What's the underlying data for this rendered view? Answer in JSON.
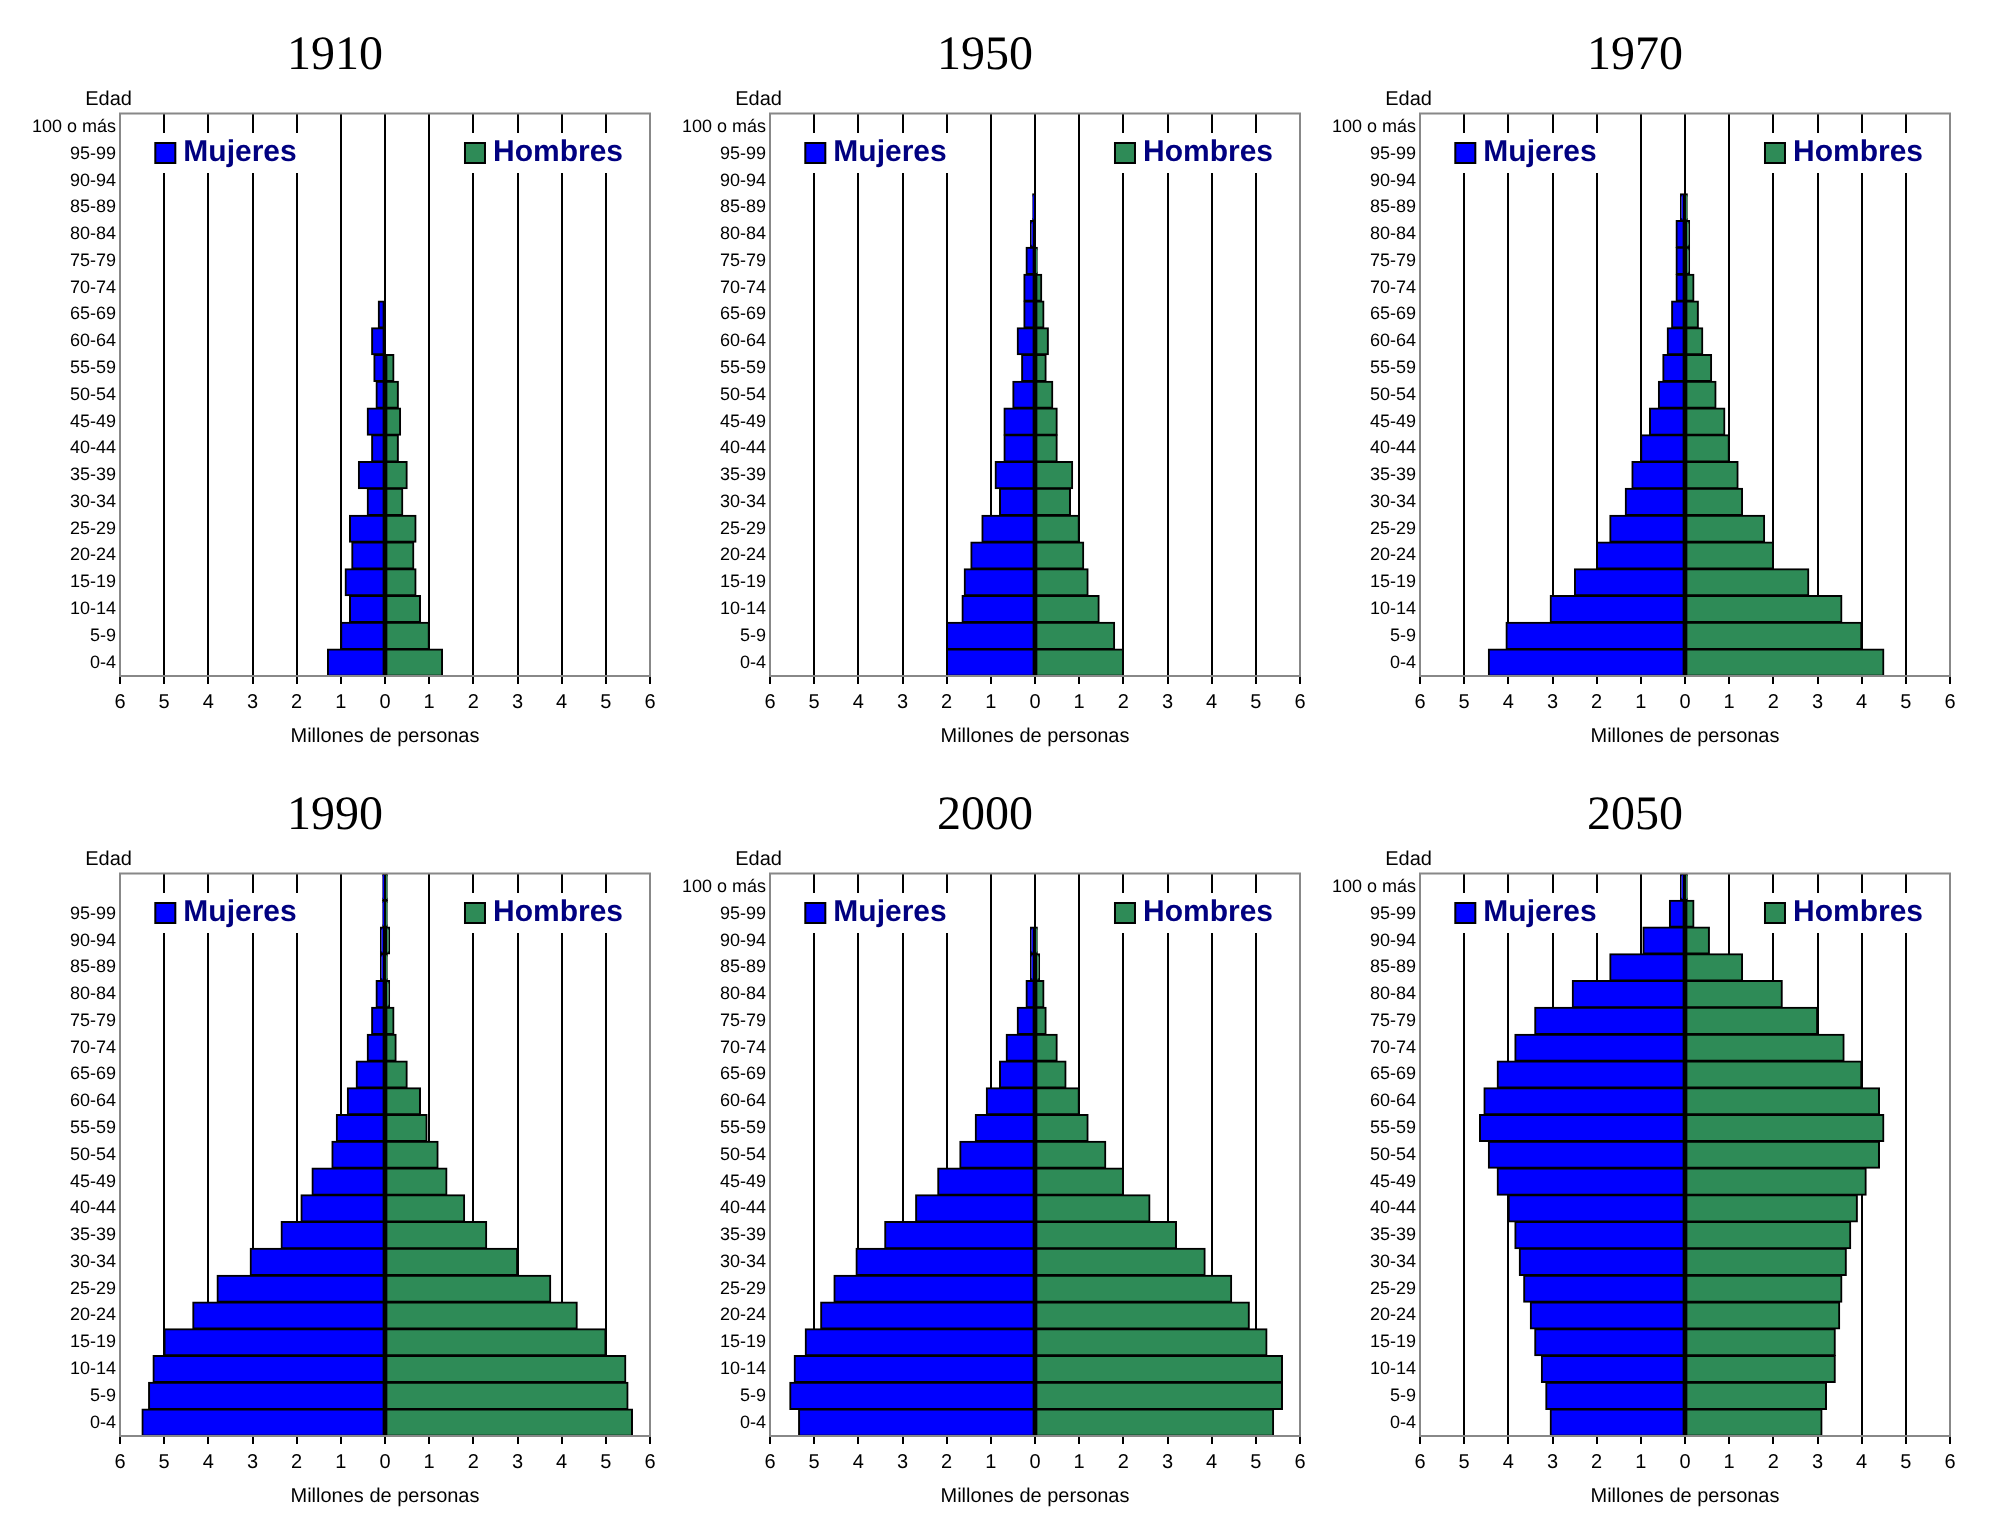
{
  "chart_data": [
    {
      "type": "bar",
      "title": "1910",
      "legend": "top",
      "xlabel": "Millones de personas",
      "ylabel": "Edad",
      "orientation": "horizontal",
      "stacked": true,
      "grid": "x",
      "categories": [
        "100 o más",
        "95-99",
        "90-94",
        "85-89",
        "80-84",
        "75-79",
        "70-74",
        "65-69",
        "60-64",
        "55-59",
        "50-54",
        "45-49",
        "40-44",
        "35-39",
        "30-34",
        "25-29",
        "20-24",
        "15-19",
        "10-14",
        "5-9",
        "0-4"
      ],
      "xlim": [
        -6,
        6
      ],
      "xticks": [
        {
          "value": -6,
          "label": "6"
        },
        {
          "value": -5,
          "label": "5"
        },
        {
          "value": -4,
          "label": "4"
        },
        {
          "value": -3,
          "label": "3"
        },
        {
          "value": -2,
          "label": "2"
        },
        {
          "value": -1,
          "label": "1"
        },
        0,
        1,
        2,
        3,
        4,
        5,
        6
      ],
      "series": [
        {
          "name": "Mujeres",
          "color": "#0000ff",
          "values": [
            0,
            0,
            0,
            0,
            0,
            0,
            0,
            -0.15,
            -0.3,
            -0.25,
            -0.2,
            -0.4,
            -0.3,
            -0.6,
            -0.4,
            -0.8,
            -0.75,
            -0.9,
            -0.8,
            -1.0,
            -1.3
          ]
        },
        {
          "name": "Hombres",
          "color": "#2e8b57",
          "values": [
            0,
            0,
            0,
            0,
            0,
            0,
            0,
            0,
            0,
            0.2,
            0.3,
            0.35,
            0.3,
            0.5,
            0.4,
            0.7,
            0.65,
            0.7,
            0.8,
            1.0,
            1.3
          ]
        }
      ]
    },
    {
      "type": "bar",
      "title": "1950",
      "legend": "top",
      "xlabel": "Millones de personas",
      "ylabel": "Edad",
      "orientation": "horizontal",
      "stacked": true,
      "grid": "x",
      "categories": [
        "100 o más",
        "95-99",
        "90-94",
        "85-89",
        "80-84",
        "75-79",
        "70-74",
        "65-69",
        "60-64",
        "55-59",
        "50-54",
        "45-49",
        "40-44",
        "35-39",
        "30-34",
        "25-29",
        "20-24",
        "15-19",
        "10-14",
        "5-9",
        "0-4"
      ],
      "xlim": [
        -6,
        6
      ],
      "xticks": [
        {
          "value": -6,
          "label": "6"
        },
        {
          "value": -5,
          "label": "5"
        },
        {
          "value": -4,
          "label": "4"
        },
        {
          "value": -3,
          "label": "3"
        },
        {
          "value": -2,
          "label": "2"
        },
        {
          "value": -1,
          "label": "1"
        },
        0,
        1,
        2,
        3,
        4,
        5,
        6
      ],
      "series": [
        {
          "name": "Mujeres",
          "color": "#0000ff",
          "values": [
            0,
            0,
            0,
            -0.05,
            -0.1,
            -0.2,
            -0.25,
            -0.25,
            -0.4,
            -0.3,
            -0.5,
            -0.7,
            -0.7,
            -0.9,
            -0.8,
            -1.2,
            -1.45,
            -1.6,
            -1.65,
            -2.0,
            -2.0
          ]
        },
        {
          "name": "Hombres",
          "color": "#2e8b57",
          "values": [
            0,
            0,
            0,
            0,
            0,
            0.05,
            0.15,
            0.2,
            0.3,
            0.25,
            0.4,
            0.5,
            0.5,
            0.85,
            0.8,
            1.0,
            1.1,
            1.2,
            1.45,
            1.8,
            2.0
          ]
        }
      ]
    },
    {
      "type": "bar",
      "title": "1970",
      "legend": "top",
      "xlabel": "Millones de personas",
      "ylabel": "Edad",
      "orientation": "horizontal",
      "stacked": true,
      "grid": "x",
      "categories": [
        "100 o más",
        "95-99",
        "90-94",
        "85-89",
        "80-84",
        "75-79",
        "70-74",
        "65-69",
        "60-64",
        "55-59",
        "50-54",
        "45-49",
        "40-44",
        "35-39",
        "30-34",
        "25-29",
        "20-24",
        "15-19",
        "10-14",
        "5-9",
        "0-4"
      ],
      "xlim": [
        -6,
        6
      ],
      "xticks": [
        {
          "value": -6,
          "label": "6"
        },
        {
          "value": -5,
          "label": "5"
        },
        {
          "value": -4,
          "label": "4"
        },
        {
          "value": -3,
          "label": "3"
        },
        {
          "value": -2,
          "label": "2"
        },
        {
          "value": -1,
          "label": "1"
        },
        0,
        1,
        2,
        3,
        4,
        5,
        6
      ],
      "series": [
        {
          "name": "Mujeres",
          "color": "#0000ff",
          "values": [
            0,
            0,
            0,
            -0.1,
            -0.2,
            -0.2,
            -0.2,
            -0.3,
            -0.4,
            -0.5,
            -0.6,
            -0.8,
            -1.0,
            -1.2,
            -1.35,
            -1.7,
            -2.0,
            -2.5,
            -3.05,
            -4.05,
            -4.45
          ]
        },
        {
          "name": "Hombres",
          "color": "#2e8b57",
          "values": [
            0,
            0,
            0,
            0.05,
            0.1,
            0.1,
            0.2,
            0.3,
            0.4,
            0.6,
            0.7,
            0.9,
            1.0,
            1.2,
            1.3,
            1.8,
            2.0,
            2.8,
            3.55,
            4.0,
            4.5
          ]
        }
      ]
    },
    {
      "type": "bar",
      "title": "1990",
      "legend": "top",
      "xlabel": "Millones de personas",
      "ylabel": "Edad",
      "orientation": "horizontal",
      "stacked": true,
      "grid": "x",
      "categories": [
        null,
        "95-99",
        "90-94",
        "85-89",
        "80-84",
        "75-79",
        "70-74",
        "65-69",
        "60-64",
        "55-59",
        "50-54",
        "45-49",
        "40-44",
        "35-39",
        "30-34",
        "25-29",
        "20-24",
        "15-19",
        "10-14",
        "5-9",
        "0-4"
      ],
      "xlim": [
        -6,
        6
      ],
      "xticks": [
        {
          "value": -6,
          "label": "6"
        },
        {
          "value": -5,
          "label": "5"
        },
        {
          "value": -4,
          "label": "4"
        },
        {
          "value": -3,
          "label": "3"
        },
        {
          "value": -2,
          "label": "2"
        },
        {
          "value": -1,
          "label": "1"
        },
        0,
        1,
        2,
        3,
        4,
        5,
        6
      ],
      "series": [
        {
          "name": "Mujeres",
          "color": "#0000ff",
          "values": [
            -0.05,
            -0.05,
            -0.1,
            -0.1,
            -0.2,
            -0.3,
            -0.4,
            -0.65,
            -0.85,
            -1.1,
            -1.2,
            -1.65,
            -1.9,
            -2.35,
            -3.05,
            -3.8,
            -4.35,
            -5.0,
            -5.25,
            -5.35,
            -5.5
          ]
        },
        {
          "name": "Hombres",
          "color": "#2e8b57",
          "values": [
            0.05,
            0.05,
            0.1,
            0.05,
            0.1,
            0.2,
            0.25,
            0.5,
            0.8,
            0.95,
            1.2,
            1.4,
            1.8,
            2.3,
            3.0,
            3.75,
            4.35,
            5.0,
            5.45,
            5.5,
            5.6
          ]
        }
      ]
    },
    {
      "type": "bar",
      "title": "2000",
      "legend": "top",
      "xlabel": "Millones de personas",
      "ylabel": "Edad",
      "orientation": "horizontal",
      "stacked": true,
      "grid": "x",
      "categories": [
        "100 o más",
        "95-99",
        "90-94",
        "85-89",
        "80-84",
        "75-79",
        "70-74",
        "65-69",
        "60-64",
        "55-59",
        "50-54",
        "45-49",
        "40-44",
        "35-39",
        "30-34",
        "25-29",
        "20-24",
        "15-19",
        "10-14",
        "5-9",
        "0-4"
      ],
      "xlim": [
        -6,
        6
      ],
      "xticks": [
        {
          "value": -6,
          "label": "6"
        },
        {
          "value": -5,
          "label": "5"
        },
        {
          "value": -4,
          "label": "4"
        },
        {
          "value": -3,
          "label": "3"
        },
        {
          "value": -2,
          "label": "2"
        },
        {
          "value": -1,
          "label": "1"
        },
        0,
        1,
        2,
        3,
        4,
        5,
        6
      ],
      "series": [
        {
          "name": "Mujeres",
          "color": "#0000ff",
          "values": [
            0,
            0,
            -0.1,
            -0.1,
            -0.2,
            -0.4,
            -0.65,
            -0.8,
            -1.1,
            -1.35,
            -1.7,
            -2.2,
            -2.7,
            -3.4,
            -4.05,
            -4.55,
            -4.85,
            -5.2,
            -5.45,
            -5.55,
            -5.35
          ]
        },
        {
          "name": "Hombres",
          "color": "#2e8b57",
          "values": [
            0,
            0,
            0.05,
            0.1,
            0.2,
            0.25,
            0.5,
            0.7,
            1.0,
            1.2,
            1.6,
            2.0,
            2.6,
            3.2,
            3.85,
            4.45,
            4.85,
            5.25,
            5.6,
            5.6,
            5.4
          ]
        }
      ]
    },
    {
      "type": "bar",
      "title": "2050",
      "legend": "top",
      "xlabel": "Millones de personas",
      "ylabel": "Edad",
      "orientation": "horizontal",
      "stacked": true,
      "grid": "x",
      "categories": [
        "100 o más",
        "95-99",
        "90-94",
        "85-89",
        "80-84",
        "75-79",
        "70-74",
        "65-69",
        "60-64",
        "55-59",
        "50-54",
        "45-49",
        "40-44",
        "35-39",
        "30-34",
        "25-29",
        "20-24",
        "15-19",
        "10-14",
        "5-9",
        "0-4"
      ],
      "xlim": [
        -6,
        6
      ],
      "xticks": [
        {
          "value": -6,
          "label": "6"
        },
        {
          "value": -5,
          "label": "5"
        },
        {
          "value": -4,
          "label": "4"
        },
        {
          "value": -3,
          "label": "3"
        },
        {
          "value": -2,
          "label": "2"
        },
        {
          "value": -1,
          "label": "1"
        },
        0,
        1,
        2,
        3,
        4,
        5,
        6
      ],
      "series": [
        {
          "name": "Mujeres",
          "color": "#0000ff",
          "values": [
            -0.1,
            -0.35,
            -0.95,
            -1.7,
            -2.55,
            -3.4,
            -3.85,
            -4.25,
            -4.55,
            -4.65,
            -4.45,
            -4.25,
            -4.0,
            -3.85,
            -3.75,
            -3.65,
            -3.5,
            -3.4,
            -3.25,
            -3.15,
            -3.05
          ]
        },
        {
          "name": "Hombres",
          "color": "#2e8b57",
          "values": [
            0.05,
            0.2,
            0.55,
            1.3,
            2.2,
            3.0,
            3.6,
            4.0,
            4.4,
            4.5,
            4.4,
            4.1,
            3.9,
            3.75,
            3.65,
            3.55,
            3.5,
            3.4,
            3.4,
            3.2,
            3.1
          ]
        }
      ]
    }
  ]
}
